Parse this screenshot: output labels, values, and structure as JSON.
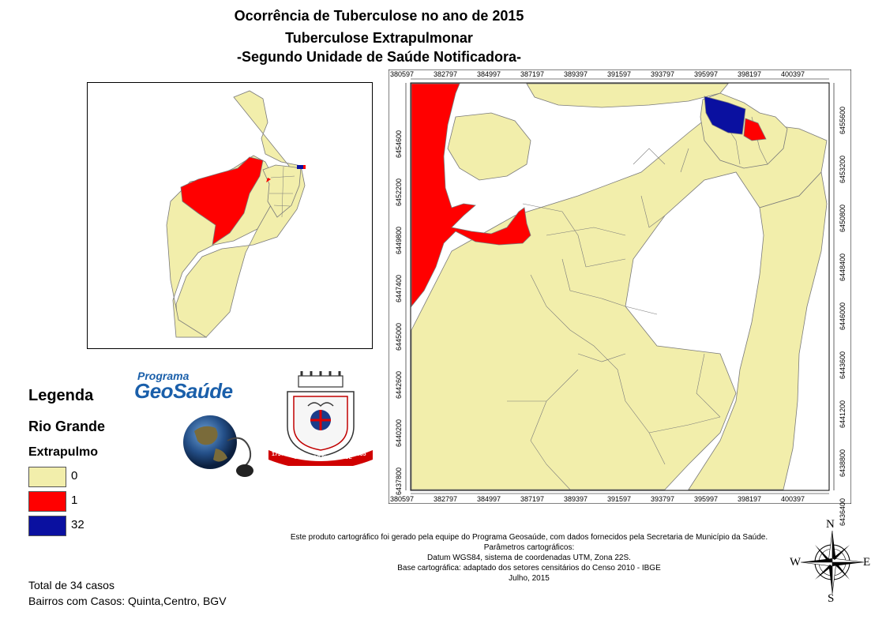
{
  "title": {
    "line1": "Ocorrência de Tuberculose no ano de 2015",
    "line2": "Tuberculose Extrapulmonar",
    "line3": "-Segundo Unidade de Saúde Notificadora-"
  },
  "axes": {
    "top_ticks": [
      "380597",
      "382797",
      "384997",
      "387197",
      "389397",
      "391597",
      "393797",
      "395997",
      "398197",
      "400397"
    ],
    "bottom_ticks": [
      "380597",
      "382797",
      "384997",
      "387197",
      "389397",
      "391597",
      "393797",
      "395997",
      "398197",
      "400397"
    ],
    "left_ticks": [
      "6454600",
      "6452200",
      "6449800",
      "6447400",
      "6445000",
      "6442600",
      "6440200",
      "6437800"
    ],
    "right_ticks": [
      "6455600",
      "6453200",
      "6450800",
      "6448400",
      "6446000",
      "6443600",
      "6441200",
      "6438800",
      "6436400"
    ]
  },
  "legend": {
    "title": "Legenda",
    "layer": "Rio Grande",
    "field": "Extrapulmo",
    "items": [
      {
        "label": "0",
        "color": "#f2eeab"
      },
      {
        "label": "1",
        "color": "#ff0000"
      },
      {
        "label": "32",
        "color": "#0a10a0"
      }
    ]
  },
  "logos": {
    "geosaude_line1": "Programa",
    "geosaude_line2": "GeoSaúde",
    "seal_left": "1737",
    "seal_right": "1835",
    "seal_text": "CIDADE DO RIO GRANDE"
  },
  "credits": [
    "Este produto cartográfico foi gerado pela equipe do Programa Geosaúde, com dados fornecidos pela Secretaria de Município da Saúde.",
    "Parâmetros cartográficos:",
    "Datum WGS84, sistema de coordenadas UTM, Zona 22S.",
    "Base cartográfica: adaptado dos setores censitários do Censo 2010 - IBGE",
    "Julho, 2015"
  ],
  "compass": {
    "n": "N",
    "s": "S",
    "e": "E",
    "w": "W"
  },
  "summary": {
    "total": "Total de 34 casos",
    "bairros": "Bairros com Casos: Quinta,Centro, BGV"
  },
  "colors": {
    "zero": "#f2eeab",
    "one": "#ff0000",
    "many": "#0a10a0",
    "border": "#7a7a7a"
  }
}
